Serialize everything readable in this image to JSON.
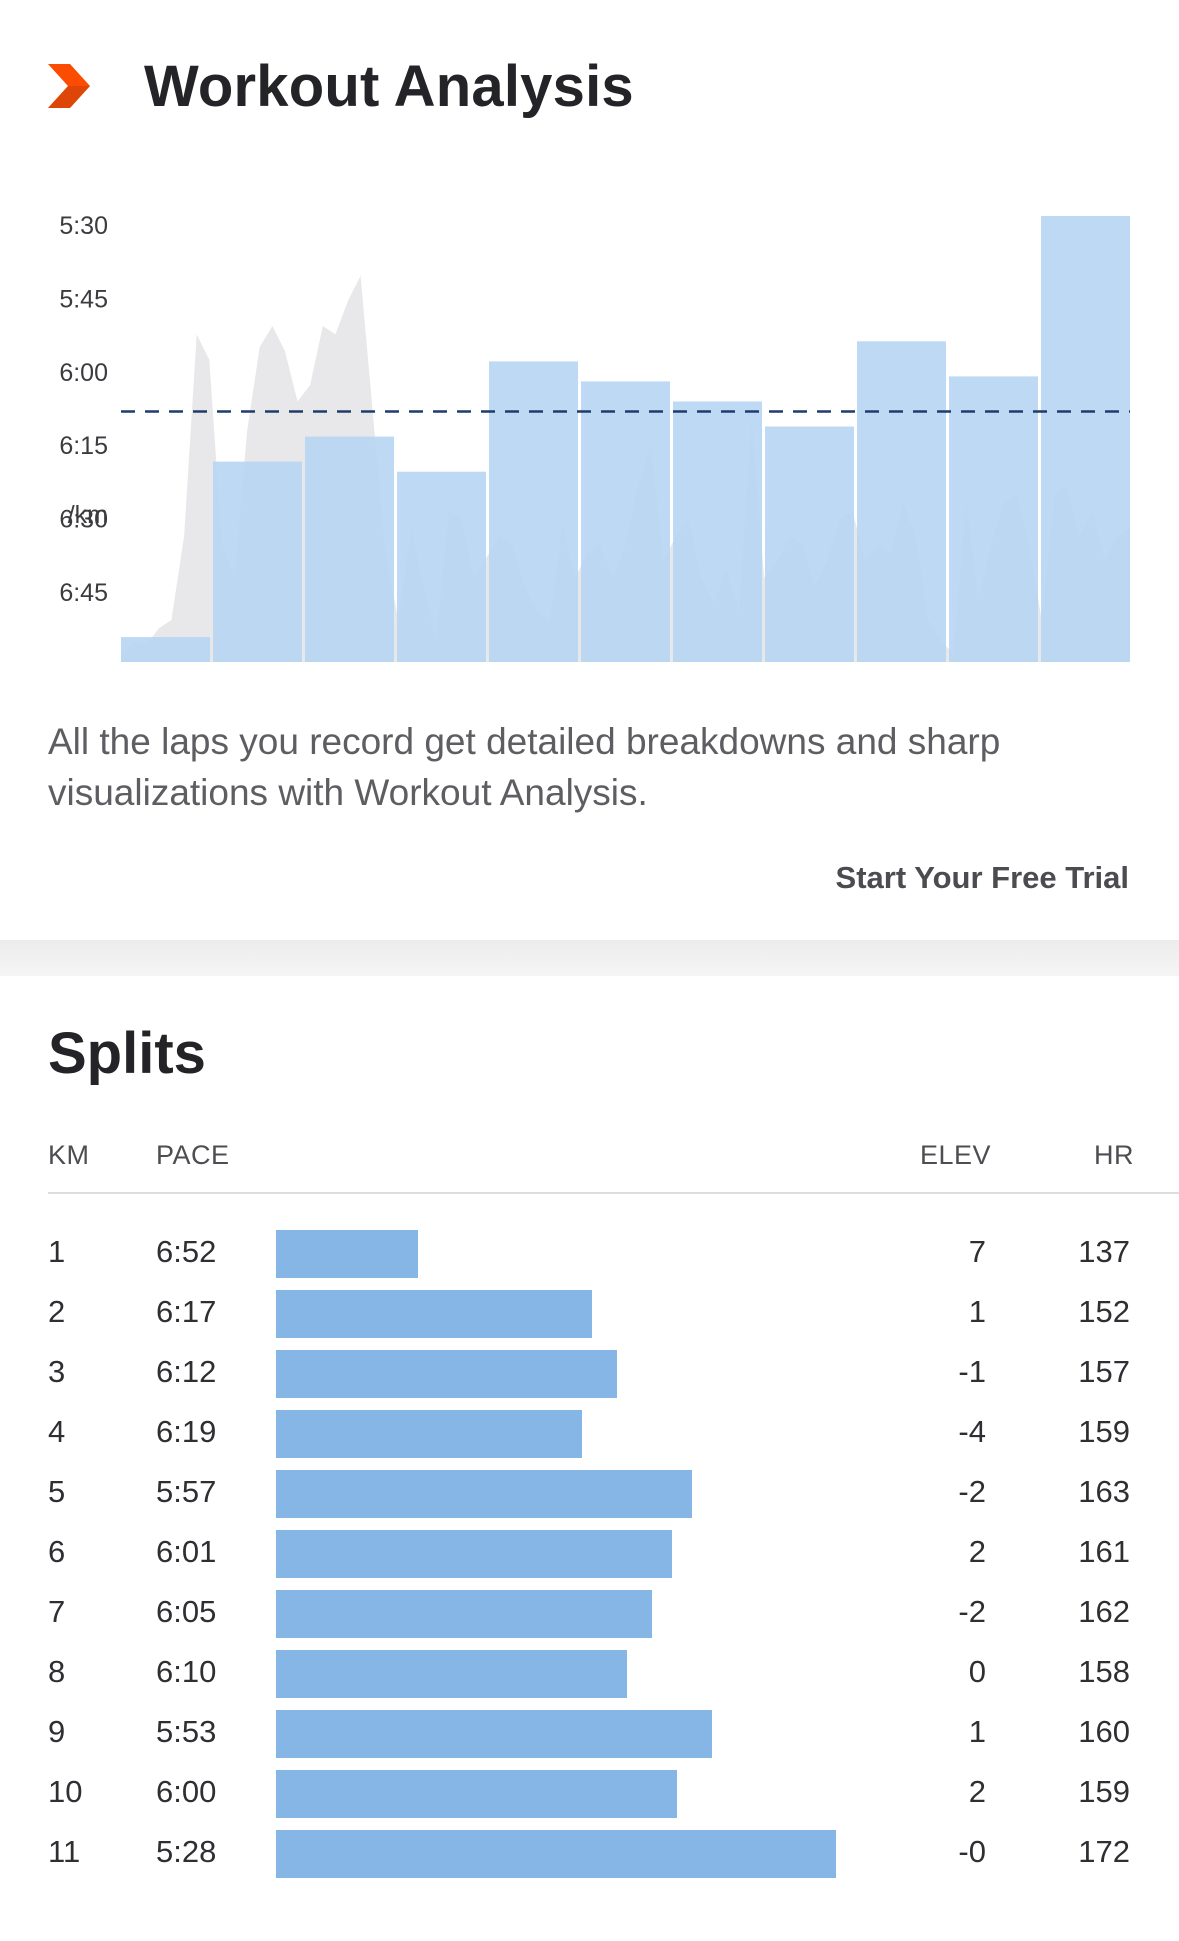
{
  "header": {
    "title": "Workout Analysis",
    "logo_icon": "chevron-logo-icon"
  },
  "colors": {
    "brand": "#fc4c02",
    "bar": "#86b6e6",
    "chart_bar": "#b7d5f3",
    "hr_area": "#e4e4e8",
    "avg_line": "#1f3d6b"
  },
  "chart_data": {
    "type": "bar",
    "title": "",
    "ylabel": "/km",
    "ytick_labels": [
      "5:30",
      "5:45",
      "6:00",
      "6:15",
      "6:30",
      "6:45"
    ],
    "ylim_seconds": [
      323,
      420
    ],
    "categories": [
      "1",
      "2",
      "3",
      "4",
      "5",
      "6",
      "7",
      "8",
      "9",
      "10",
      "11"
    ],
    "series": [
      {
        "name": "Pace",
        "values_seconds": [
          412,
          377,
          372,
          379,
          357,
          361,
          365,
          370,
          353,
          360,
          328
        ]
      }
    ],
    "reference_line": {
      "name": "Average pace",
      "value_seconds": 367,
      "style": "dashed"
    },
    "background_series": {
      "name": "Heart rate / elevation profile",
      "style": "grey area"
    }
  },
  "description": "All the laps you record get detailed breakdowns and sharp visualizations with Workout Analysis.",
  "cta_label": "Start Your Free Trial",
  "splits": {
    "title": "Splits",
    "headers": {
      "km": "KM",
      "pace": "PACE",
      "elev": "ELEV",
      "hr": "HR"
    },
    "rows": [
      {
        "km": "1",
        "pace": "6:52",
        "pace_s": 412,
        "elev": "7",
        "hr": "137"
      },
      {
        "km": "2",
        "pace": "6:17",
        "pace_s": 377,
        "elev": "1",
        "hr": "152"
      },
      {
        "km": "3",
        "pace": "6:12",
        "pace_s": 372,
        "elev": "-1",
        "hr": "157"
      },
      {
        "km": "4",
        "pace": "6:19",
        "pace_s": 379,
        "elev": "-4",
        "hr": "159"
      },
      {
        "km": "5",
        "pace": "5:57",
        "pace_s": 357,
        "elev": "-2",
        "hr": "163"
      },
      {
        "km": "6",
        "pace": "6:01",
        "pace_s": 361,
        "elev": "2",
        "hr": "161"
      },
      {
        "km": "7",
        "pace": "6:05",
        "pace_s": 365,
        "elev": "-2",
        "hr": "162"
      },
      {
        "km": "8",
        "pace": "6:10",
        "pace_s": 370,
        "elev": "0",
        "hr": "158"
      },
      {
        "km": "9",
        "pace": "5:53",
        "pace_s": 353,
        "elev": "1",
        "hr": "160"
      },
      {
        "km": "10",
        "pace": "6:00",
        "pace_s": 360,
        "elev": "2",
        "hr": "159"
      },
      {
        "km": "11",
        "pace": "5:28",
        "pace_s": 328,
        "elev": "-0",
        "hr": "172"
      }
    ]
  }
}
